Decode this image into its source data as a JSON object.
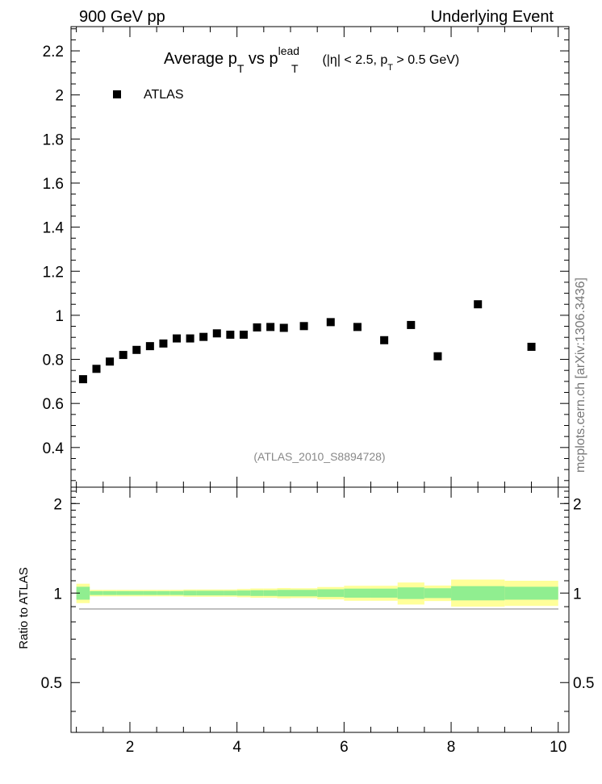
{
  "header": {
    "left": "900 GeV pp",
    "right": "Underlying Event"
  },
  "watermark": "mcplots.cern.ch [arXiv:1306.3436]",
  "chart_data": [
    {
      "type": "scatter",
      "title": "",
      "title_parts": {
        "a": "Average p",
        "b": "T",
        "c": " vs p",
        "d": "lead",
        "e": "T",
        "f": " (|η| < 2.5, p",
        "g": "T",
        "h": " > 0.5 GeV)"
      },
      "xlim": [
        0.9,
        10.2
      ],
      "ylim": [
        0.22,
        2.31
      ],
      "y_ticks": [
        0.4,
        0.6,
        0.8,
        1,
        1.2,
        1.4,
        1.6,
        1.8,
        2,
        2.2
      ],
      "y_tick_labels": [
        "0.4",
        "0.6",
        "0.8",
        "1",
        "1.2",
        "1.4",
        "1.6",
        "1.8",
        "2",
        "2.2"
      ],
      "legend": {
        "position": "top-left",
        "label": "ATLAS"
      },
      "annotation": "(ATLAS_2010_S8894728)",
      "series": [
        {
          "name": "ATLAS",
          "color": "#000000",
          "marker": "square",
          "x": [
            1.125,
            1.375,
            1.625,
            1.875,
            2.125,
            2.375,
            2.625,
            2.875,
            3.125,
            3.375,
            3.625,
            3.875,
            4.125,
            4.375,
            4.625,
            4.875,
            5.25,
            5.75,
            6.25,
            6.75,
            7.25,
            7.75,
            8.5,
            9.5
          ],
          "y": [
            0.71,
            0.757,
            0.79,
            0.82,
            0.843,
            0.86,
            0.872,
            0.895,
            0.895,
            0.902,
            0.918,
            0.912,
            0.912,
            0.945,
            0.947,
            0.943,
            0.951,
            0.969,
            0.947,
            0.887,
            0.956,
            0.814,
            1.05,
            0.857
          ]
        }
      ]
    },
    {
      "type": "area",
      "ylabel": "Ratio to ATLAS",
      "xlim": [
        0.9,
        10.2
      ],
      "ylim": [
        0.34,
        2.27
      ],
      "y_ticks": [
        0.5,
        1,
        2
      ],
      "y_tick_labels": [
        "0.5",
        "1",
        "2"
      ],
      "x_ticks": [
        2,
        4,
        6,
        8,
        10
      ],
      "x_tick_labels": [
        "2",
        "4",
        "6",
        "8",
        "10"
      ],
      "bin_edges": [
        1,
        1.25,
        1.5,
        1.75,
        2,
        2.25,
        2.5,
        2.75,
        3,
        3.25,
        3.5,
        3.75,
        4,
        4.25,
        4.5,
        4.75,
        5,
        5.5,
        6,
        6.5,
        7,
        7.5,
        8,
        9,
        10
      ],
      "colors": {
        "stat": "#90ee90",
        "total": "#ffff99"
      },
      "series": [
        {
          "name": "",
          "band_stat": [
            [
              0.95,
              1.05
            ],
            [
              0.985,
              1.015
            ],
            [
              0.985,
              1.015
            ],
            [
              0.985,
              1.015
            ],
            [
              0.985,
              1.015
            ],
            [
              0.985,
              1.015
            ],
            [
              0.985,
              1.015
            ],
            [
              0.985,
              1.015
            ],
            [
              0.982,
              1.018
            ],
            [
              0.982,
              1.018
            ],
            [
              0.982,
              1.018
            ],
            [
              0.982,
              1.018
            ],
            [
              0.98,
              1.02
            ],
            [
              0.978,
              1.022
            ],
            [
              0.978,
              1.022
            ],
            [
              0.975,
              1.025
            ],
            [
              0.975,
              1.025
            ],
            [
              0.97,
              1.03
            ],
            [
              0.965,
              1.035
            ],
            [
              0.965,
              1.035
            ],
            [
              0.955,
              1.045
            ],
            [
              0.962,
              1.038
            ],
            [
              0.945,
              1.055
            ],
            [
              0.95,
              1.05
            ]
          ],
          "band_total": [
            [
              0.925,
              1.075
            ],
            [
              0.975,
              1.025
            ],
            [
              0.975,
              1.025
            ],
            [
              0.975,
              1.025
            ],
            [
              0.975,
              1.025
            ],
            [
              0.975,
              1.025
            ],
            [
              0.975,
              1.025
            ],
            [
              0.975,
              1.025
            ],
            [
              0.972,
              1.028
            ],
            [
              0.972,
              1.028
            ],
            [
              0.972,
              1.028
            ],
            [
              0.972,
              1.028
            ],
            [
              0.968,
              1.032
            ],
            [
              0.964,
              1.036
            ],
            [
              0.964,
              1.036
            ],
            [
              0.96,
              1.04
            ],
            [
              0.962,
              1.038
            ],
            [
              0.952,
              1.048
            ],
            [
              0.942,
              1.058
            ],
            [
              0.942,
              1.058
            ],
            [
              0.915,
              1.085
            ],
            [
              0.94,
              1.06
            ],
            [
              0.9,
              1.11
            ],
            [
              0.905,
              1.1
            ]
          ]
        }
      ]
    }
  ]
}
